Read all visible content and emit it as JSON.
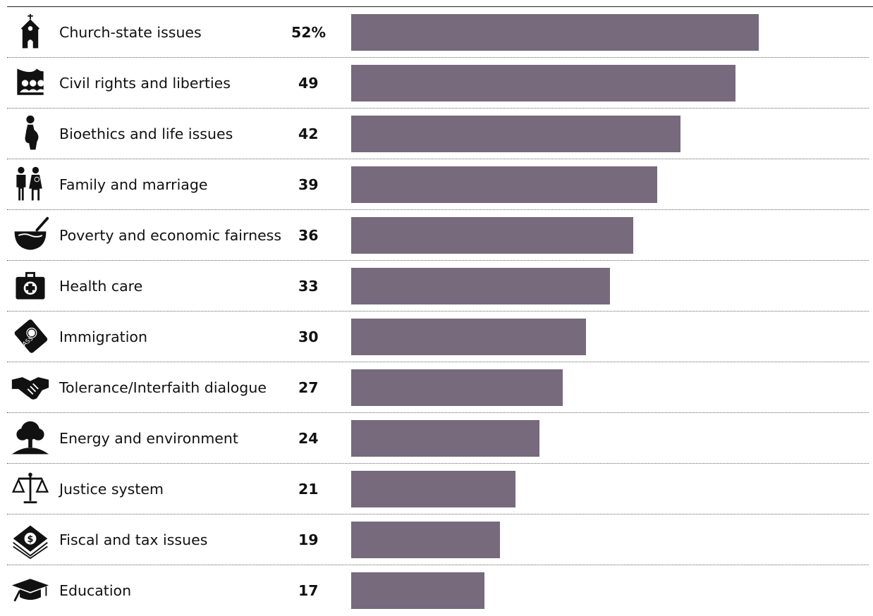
{
  "chart_data": {
    "type": "bar",
    "orientation": "horizontal",
    "title": "",
    "xlabel": "",
    "ylabel": "",
    "xlim": [
      0,
      52
    ],
    "grid": false,
    "legend": "none",
    "bar_color": "#776a7d",
    "unit": "%",
    "categories": [
      "Church-state issues",
      "Civil rights and liberties",
      "Bioethics and life issues",
      "Family and marriage",
      "Poverty and economic fairness",
      "Health care",
      "Immigration",
      "Tolerance/Interfaith dialogue",
      "Energy and environment",
      "Justice system",
      "Fiscal and tax issues",
      "Education"
    ],
    "values": [
      52,
      49,
      42,
      39,
      36,
      33,
      30,
      27,
      24,
      21,
      19,
      17
    ],
    "data_labels": [
      "52%",
      "49",
      "42",
      "39",
      "36",
      "33",
      "30",
      "27",
      "24",
      "21",
      "19",
      "17"
    ],
    "icons": [
      "church-icon",
      "flag-people-icon",
      "pregnant-woman-icon",
      "family-icon",
      "bowl-spoon-icon",
      "first-aid-kit-icon",
      "passport-icon",
      "handshake-icon",
      "tree-icon",
      "scales-icon",
      "money-stack-icon",
      "graduation-cap-icon"
    ]
  }
}
